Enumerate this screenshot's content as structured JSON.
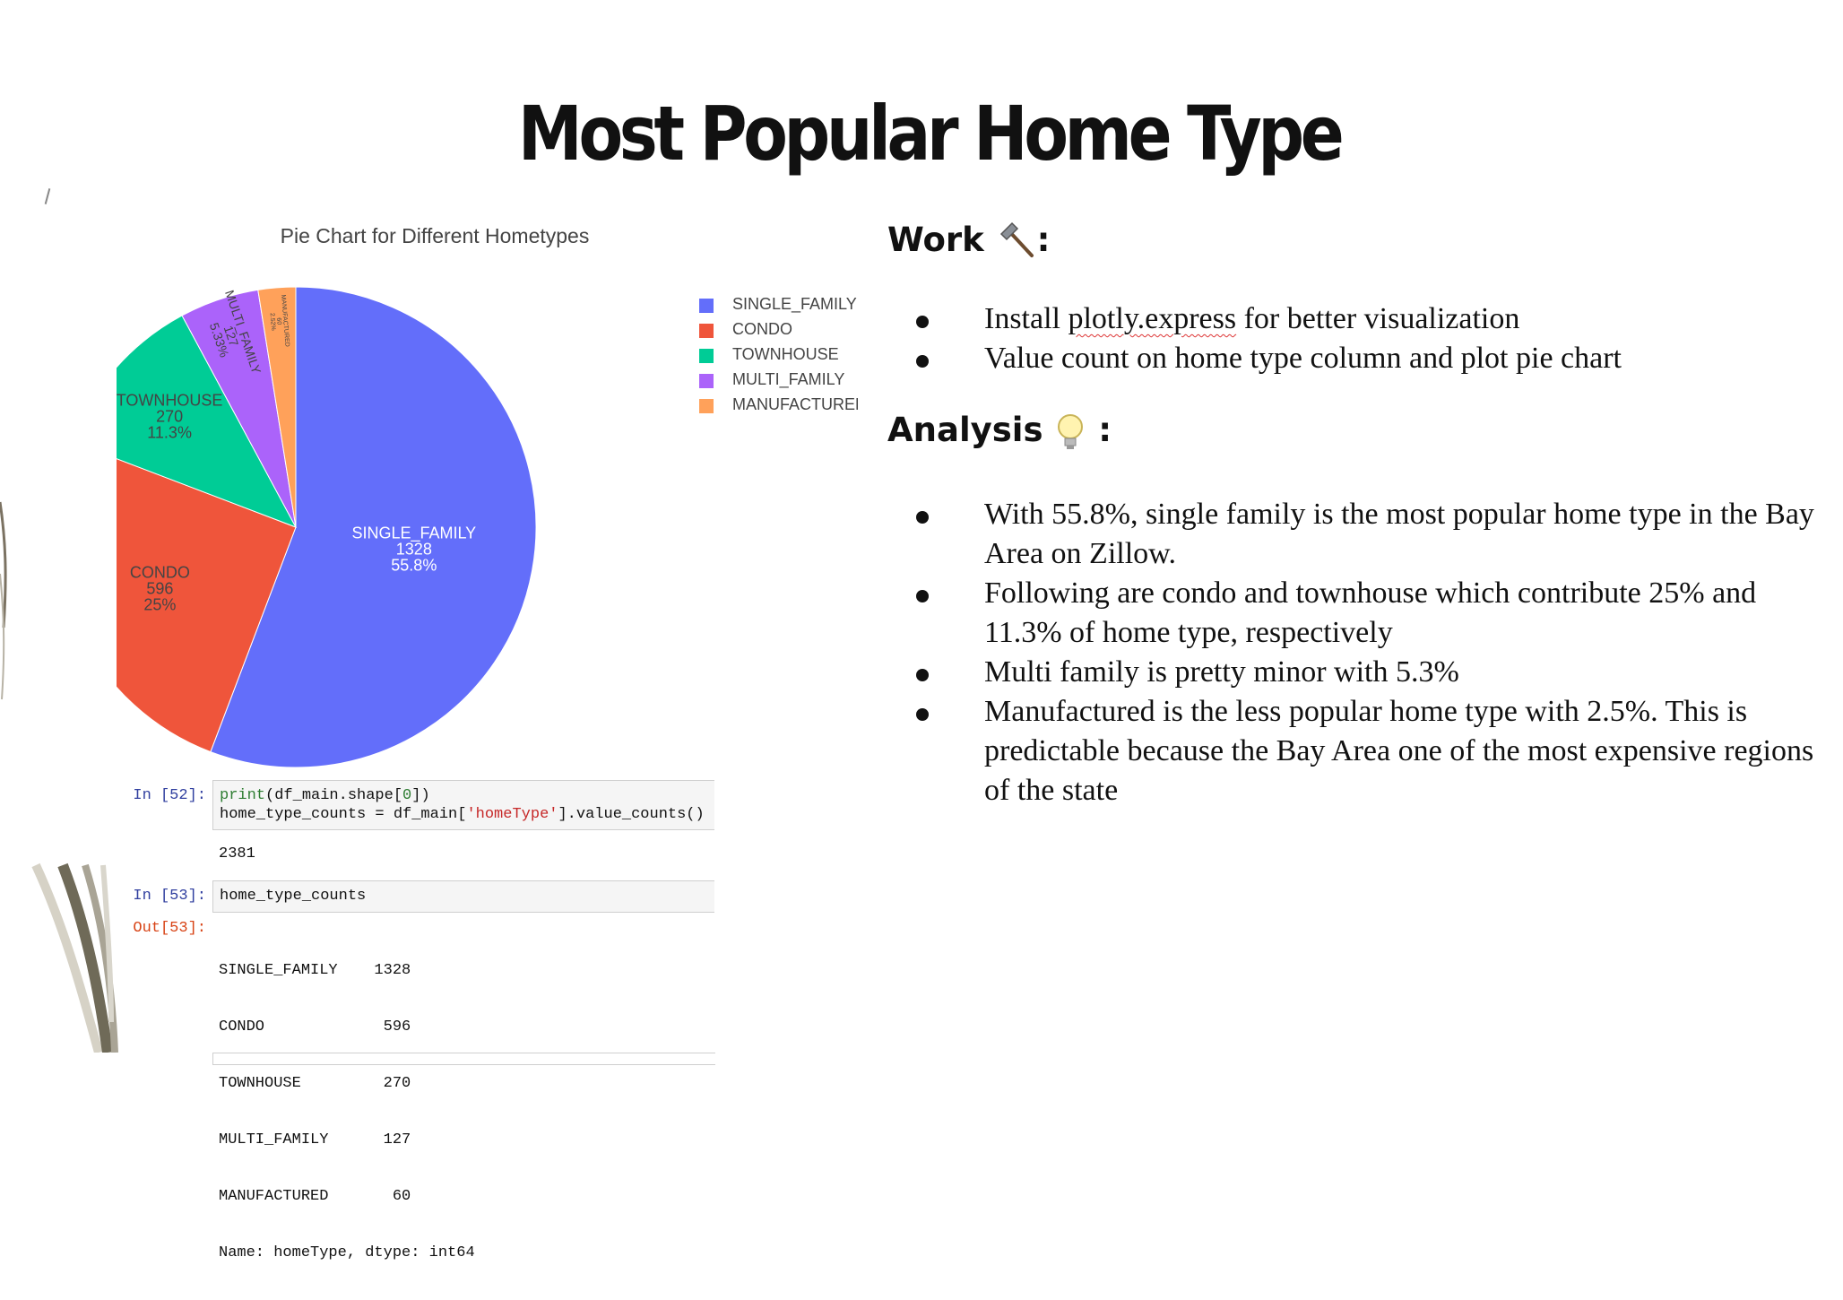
{
  "slide": {
    "title": "Most Popular Home Type"
  },
  "work": {
    "heading": "Work",
    "icon": "hammer-icon",
    "bullets": [
      {
        "pre": "Install ",
        "mark": "plotly.express",
        "post": " for better visualization"
      },
      {
        "pre": "Value count on home type column and plot pie chart",
        "mark": "",
        "post": ""
      }
    ]
  },
  "analysis": {
    "heading": "Analysis",
    "icon": "lightbulb-icon",
    "bullets": [
      "With 55.8%, single family is the most popular home type in the Bay Area on Zillow.",
      "Following are condo and townhouse which contribute 25% and 11.3% of home type, respectively",
      "Multi family is pretty minor with 5.3%",
      "Manufactured is the less popular home type with 2.5%. This is predictable because the Bay Area one of the most expensive regions of the state"
    ]
  },
  "chart_data": {
    "type": "pie",
    "title": "Pie Chart for Different Hometypes",
    "categories": [
      "SINGLE_FAMILY",
      "CONDO",
      "TOWNHOUSE",
      "MULTI_FAMILY",
      "MANUFACTURED"
    ],
    "values": [
      1328,
      596,
      270,
      127,
      60
    ],
    "percent_labels": [
      "55.8%",
      "25%",
      "11.3%",
      "5.33%",
      "2.52%"
    ],
    "colors": [
      "#636efa",
      "#ef553b",
      "#00cc96",
      "#ab63fa",
      "#ffa15a"
    ],
    "legend_labels": [
      "SINGLE_FAMILY",
      "CONDO",
      "TOWNHOUSE",
      "MULTI_FAMILY",
      "MANUFACTURED"
    ],
    "legend_position": "right",
    "start_angle": "top, clockwise"
  },
  "notebook": {
    "cell1": {
      "prompt": "In [52]:",
      "line1": [
        {
          "t": "print",
          "c": "kw"
        },
        {
          "t": "(df_main.shape[",
          "c": ""
        },
        {
          "t": "0",
          "c": "kw"
        },
        {
          "t": "])",
          "c": ""
        }
      ],
      "line2": [
        {
          "t": "home_type_counts = df_main[",
          "c": ""
        },
        {
          "t": "'homeType'",
          "c": "str"
        },
        {
          "t": "].value_counts()",
          "c": ""
        }
      ],
      "output": "2381"
    },
    "cell2": {
      "prompt": "In [53]:",
      "code": "home_type_counts",
      "out_prompt": "Out[53]:",
      "output_lines": [
        "SINGLE_FAMILY    1328",
        "CONDO             596",
        "TOWNHOUSE         270",
        "MULTI_FAMILY      127",
        "MANUFACTURED       60",
        "Name: homeType, dtype: int64"
      ]
    }
  }
}
